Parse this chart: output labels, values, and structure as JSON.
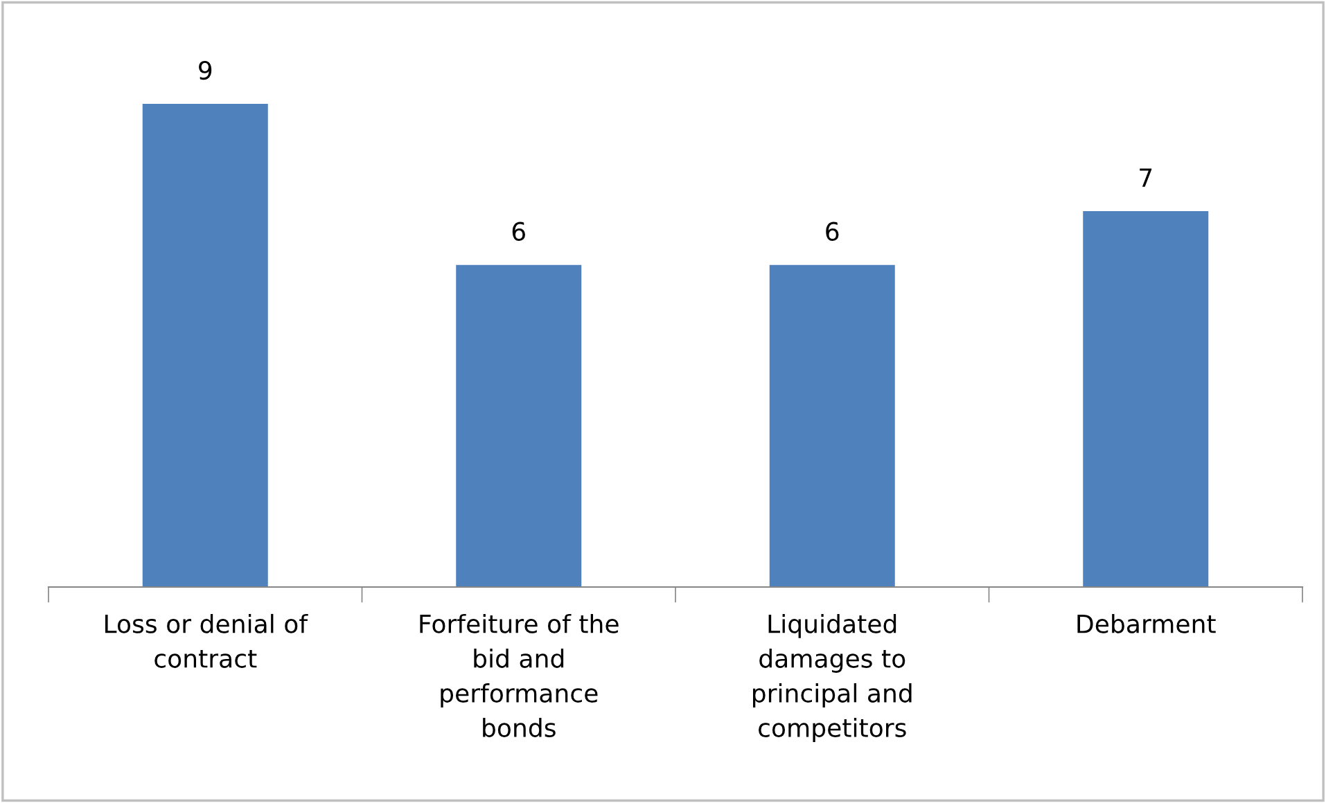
{
  "chart_data": {
    "type": "bar",
    "categories": [
      "Loss or denial of\ncontract",
      "Forfeiture of the\nbid and\nperformance\nbonds",
      "Liquidated\ndamages to\nprincipal and\ncompetitors",
      "Debarment"
    ],
    "values": [
      9,
      6,
      6,
      7
    ],
    "color": "#4f81bd",
    "data_labels": true,
    "grid": false,
    "legend": false
  }
}
